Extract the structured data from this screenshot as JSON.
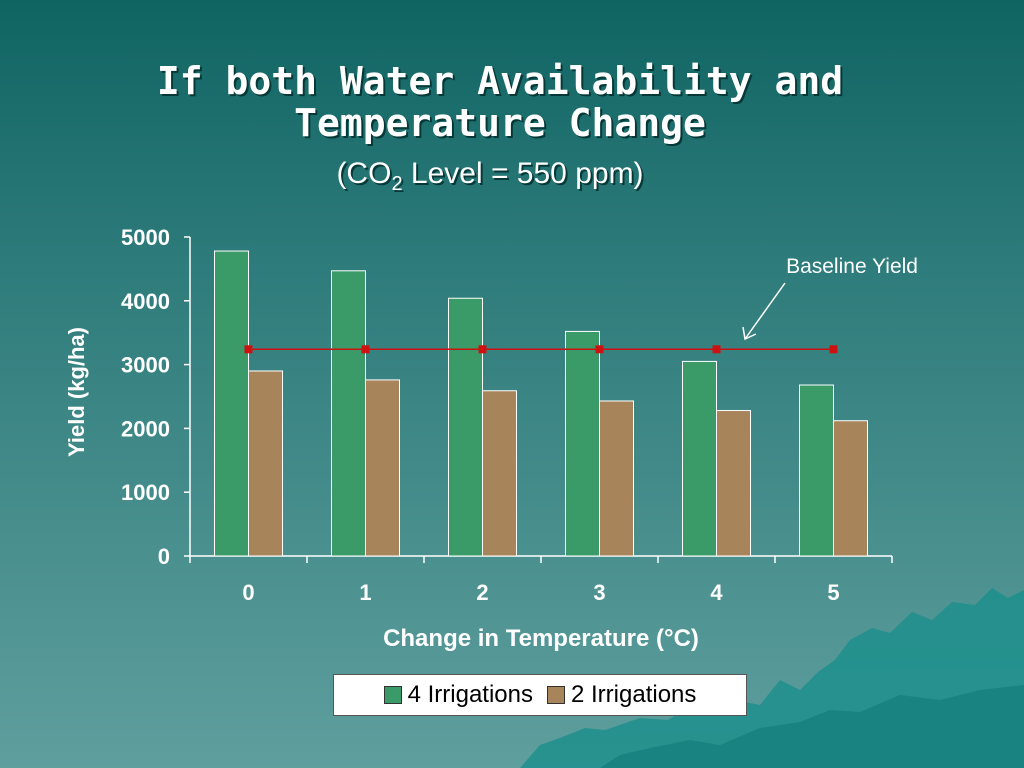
{
  "slide": {
    "title": "If both Water Availability and Temperature Change",
    "subtitle_prefix": "(CO",
    "subtitle_sub": "2",
    "subtitle_suffix": " Level = 550 ppm)"
  },
  "chart_data": {
    "type": "bar",
    "categories": [
      "0",
      "1",
      "2",
      "3",
      "4",
      "5"
    ],
    "series": [
      {
        "name": "4 Irrigations",
        "values": [
          4780,
          4470,
          4040,
          3520,
          3050,
          2680
        ],
        "color": "#3a9a68"
      },
      {
        "name": "2 Irrigations",
        "values": [
          2900,
          2760,
          2590,
          2430,
          2280,
          2120
        ],
        "color": "#a8845a"
      }
    ],
    "baseline": {
      "label": "Baseline Yield",
      "value": 3240,
      "color": "#cc1111"
    },
    "xlabel": "Change in Temperature (°C)",
    "ylabel": "Yield (kg/ha)",
    "ylim": [
      0,
      5000
    ],
    "yticks": [
      0,
      1000,
      2000,
      3000,
      4000,
      5000
    ],
    "legend_position": "bottom-center",
    "grid": false
  }
}
